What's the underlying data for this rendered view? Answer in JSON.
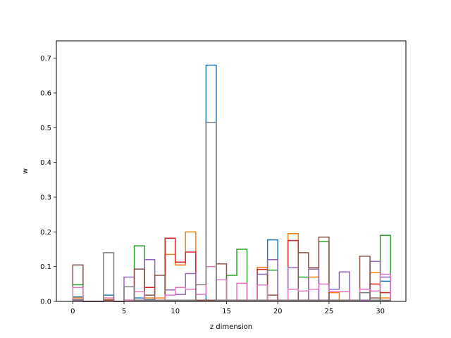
{
  "chart_data": {
    "type": "line",
    "style": "step histogram outlines",
    "xlabel": "z dimension",
    "ylabel": "w",
    "xlim": [
      -1.6,
      32.5
    ],
    "ylim": [
      0,
      0.75
    ],
    "grid": false,
    "legend": "none",
    "x_ticks": [
      0,
      5,
      10,
      15,
      20,
      25,
      30
    ],
    "y_ticks": [
      0.0,
      0.1,
      0.2,
      0.3,
      0.4,
      0.5,
      0.6,
      0.7
    ],
    "x_tick_labels": [
      "0",
      "5",
      "10",
      "15",
      "20",
      "25",
      "30"
    ],
    "y_tick_labels": [
      "0.0",
      "0.1",
      "0.2",
      "0.3",
      "0.4",
      "0.5",
      "0.6",
      "0.7"
    ],
    "bin_edges": [
      0,
      1,
      2,
      3,
      4,
      5,
      6,
      7,
      8,
      9,
      10,
      11,
      12,
      13,
      14,
      15,
      16,
      17,
      18,
      19,
      20,
      21,
      22,
      23,
      24,
      25,
      26,
      27,
      28,
      29,
      30,
      31
    ],
    "series": [
      {
        "color": "#1f77b4",
        "values": [
          0.013,
          0,
          0,
          0.018,
          0,
          0.003,
          0.01,
          0.005,
          0.003,
          0.002,
          0.002,
          0.002,
          0.002,
          0.68,
          0.003,
          0.002,
          0.003,
          0.003,
          0.003,
          0.177,
          0.003,
          0.003,
          0.003,
          0.003,
          0.003,
          0.003,
          0.003,
          0.003,
          0.003,
          0.003,
          0.058
        ]
      },
      {
        "color": "#ff7f0e",
        "values": [
          0.01,
          0,
          0,
          0.005,
          0,
          0.003,
          0.003,
          0.01,
          0.01,
          0.135,
          0.105,
          0.2,
          0.003,
          0.003,
          0.003,
          0.003,
          0.003,
          0.003,
          0.098,
          0.003,
          0.003,
          0.195,
          0.003,
          0.07,
          0.003,
          0.025,
          0.003,
          0.003,
          0.003,
          0.083,
          0.01
        ]
      },
      {
        "color": "#2ca02c",
        "values": [
          0.048,
          0,
          0,
          0.003,
          0,
          0.003,
          0.16,
          0.003,
          0.003,
          0.003,
          0.003,
          0.003,
          0.003,
          0.003,
          0.003,
          0.075,
          0.15,
          0.003,
          0.003,
          0.09,
          0.003,
          0.003,
          0.07,
          0.003,
          0.172,
          0.003,
          0.003,
          0.003,
          0.003,
          0.003,
          0.19
        ]
      },
      {
        "color": "#d62728",
        "values": [
          0.003,
          0,
          0,
          0.003,
          0,
          0.003,
          0.003,
          0.04,
          0.003,
          0.182,
          0.113,
          0.142,
          0.003,
          0.003,
          0.003,
          0.003,
          0.003,
          0.003,
          0.092,
          0.003,
          0.003,
          0.175,
          0.003,
          0.003,
          0.003,
          0.003,
          0.003,
          0.003,
          0.003,
          0.05,
          0.025
        ]
      },
      {
        "color": "#9467bd",
        "values": [
          0.003,
          0,
          0,
          0.003,
          0,
          0.07,
          0.003,
          0.12,
          0.003,
          0.033,
          0.02,
          0.08,
          0.003,
          0.003,
          0.003,
          0.003,
          0.003,
          0.003,
          0.078,
          0.12,
          0.003,
          0.097,
          0.003,
          0.093,
          0.003,
          0.035,
          0.085,
          0.003,
          0.003,
          0.115,
          0.07
        ]
      },
      {
        "color": "#8c564b",
        "values": [
          0.105,
          0,
          0,
          0.003,
          0,
          0.003,
          0.093,
          0.018,
          0.075,
          0.003,
          0.003,
          0.003,
          0.003,
          0.003,
          0.108,
          0.003,
          0.003,
          0.003,
          0.003,
          0.018,
          0.003,
          0.003,
          0.14,
          0.097,
          0.185,
          0.003,
          0.003,
          0.003,
          0.13,
          0.01,
          0.003
        ]
      },
      {
        "color": "#e377c2",
        "values": [
          0.04,
          0,
          0,
          0.01,
          0,
          0.003,
          0.028,
          0.003,
          0.003,
          0.018,
          0.04,
          0.035,
          0.02,
          0.1,
          0.062,
          0.003,
          0.052,
          0.003,
          0.047,
          0.003,
          0.003,
          0.035,
          0.03,
          0.035,
          0.05,
          0.028,
          0.028,
          0.003,
          0.035,
          0.03,
          0.078
        ]
      },
      {
        "color": "#7f7f7f",
        "values": [
          0.005,
          0,
          0,
          0.14,
          0,
          0.042,
          0.003,
          0.003,
          0.003,
          0.003,
          0.003,
          0.003,
          0.048,
          0.515,
          0.003,
          0.003,
          0.003,
          0.003,
          0.003,
          0.003,
          0.003,
          0.003,
          0.003,
          0.003,
          0.003,
          0.003,
          0.003,
          0.003,
          0.025,
          0.003,
          0.003
        ]
      }
    ]
  }
}
